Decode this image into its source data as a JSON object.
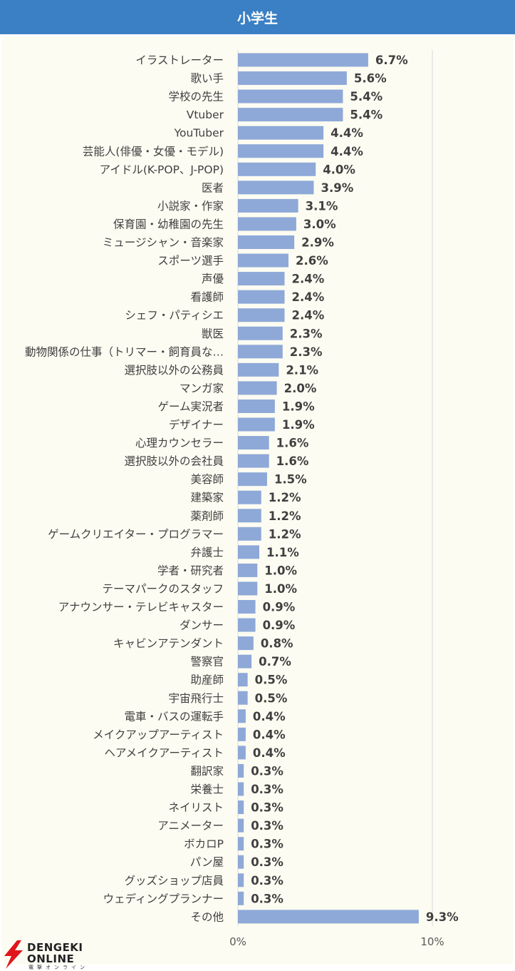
{
  "header": {
    "title": "小学生"
  },
  "colors": {
    "header": "#3b7fc4",
    "bar": "#8ea9d8",
    "panel": "#fdfcf2",
    "grid": "#d9d9d9"
  },
  "logo": {
    "line1": "DENGEKI",
    "line2": "ONLINE",
    "sub": "電撃オンライン",
    "icon": "lightning-bolt-icon"
  },
  "chart_data": {
    "type": "bar",
    "orientation": "horizontal",
    "title": "小学生",
    "categories": [
      "イラストレーター",
      "歌い手",
      "学校の先生",
      "Vtuber",
      "YouTuber",
      "芸能人(俳優・女優・モデル)",
      "アイドル(K-POP、J-POP)",
      "医者",
      "小説家・作家",
      "保育園・幼稚園の先生",
      "ミュージシャン・音楽家",
      "スポーツ選手",
      "声優",
      "看護師",
      "シェフ・パティシエ",
      "獣医",
      "動物関係の仕事（トリマー・飼育員な…",
      "選択肢以外の公務員",
      "マンガ家",
      "ゲーム実況者",
      "デザイナー",
      "心理カウンセラー",
      "選択肢以外の会社員",
      "美容師",
      "建築家",
      "薬剤師",
      "ゲームクリエイター・プログラマー",
      "弁護士",
      "学者・研究者",
      "テーマパークのスタッフ",
      "アナウンサー・テレビキャスター",
      "ダンサー",
      "キャビンアテンダント",
      "警察官",
      "助産師",
      "宇宙飛行士",
      "電車・バスの運転手",
      "メイクアップアーティスト",
      "ヘアメイクアーティスト",
      "翻訳家",
      "栄養士",
      "ネイリスト",
      "アニメーター",
      "ボカロP",
      "パン屋",
      "グッズショップ店員",
      "ウェディングプランナー",
      "その他"
    ],
    "values": [
      6.7,
      5.6,
      5.4,
      5.4,
      4.4,
      4.4,
      4.0,
      3.9,
      3.1,
      3.0,
      2.9,
      2.6,
      2.4,
      2.4,
      2.4,
      2.3,
      2.3,
      2.1,
      2.0,
      1.9,
      1.9,
      1.6,
      1.6,
      1.5,
      1.2,
      1.2,
      1.2,
      1.1,
      1.0,
      1.0,
      0.9,
      0.9,
      0.8,
      0.7,
      0.5,
      0.5,
      0.4,
      0.4,
      0.4,
      0.3,
      0.3,
      0.3,
      0.3,
      0.3,
      0.3,
      0.3,
      0.3,
      9.3
    ],
    "labels": [
      "6.7%",
      "5.6%",
      "5.4%",
      "5.4%",
      "4.4%",
      "4.4%",
      "4.0%",
      "3.9%",
      "3.1%",
      "3.0%",
      "2.9%",
      "2.6%",
      "2.4%",
      "2.4%",
      "2.4%",
      "2.3%",
      "2.3%",
      "2.1%",
      "2.0%",
      "1.9%",
      "1.9%",
      "1.6%",
      "1.6%",
      "1.5%",
      "1.2%",
      "1.2%",
      "1.2%",
      "1.1%",
      "1.0%",
      "1.0%",
      "0.9%",
      "0.9%",
      "0.8%",
      "0.7%",
      "0.5%",
      "0.5%",
      "0.4%",
      "0.4%",
      "0.4%",
      "0.3%",
      "0.3%",
      "0.3%",
      "0.3%",
      "0.3%",
      "0.3%",
      "0.3%",
      "0.3%",
      "9.3%"
    ],
    "xticks": [
      "0%",
      "10%"
    ],
    "xlim": [
      0,
      10
    ],
    "grid": true,
    "legend": "none"
  }
}
